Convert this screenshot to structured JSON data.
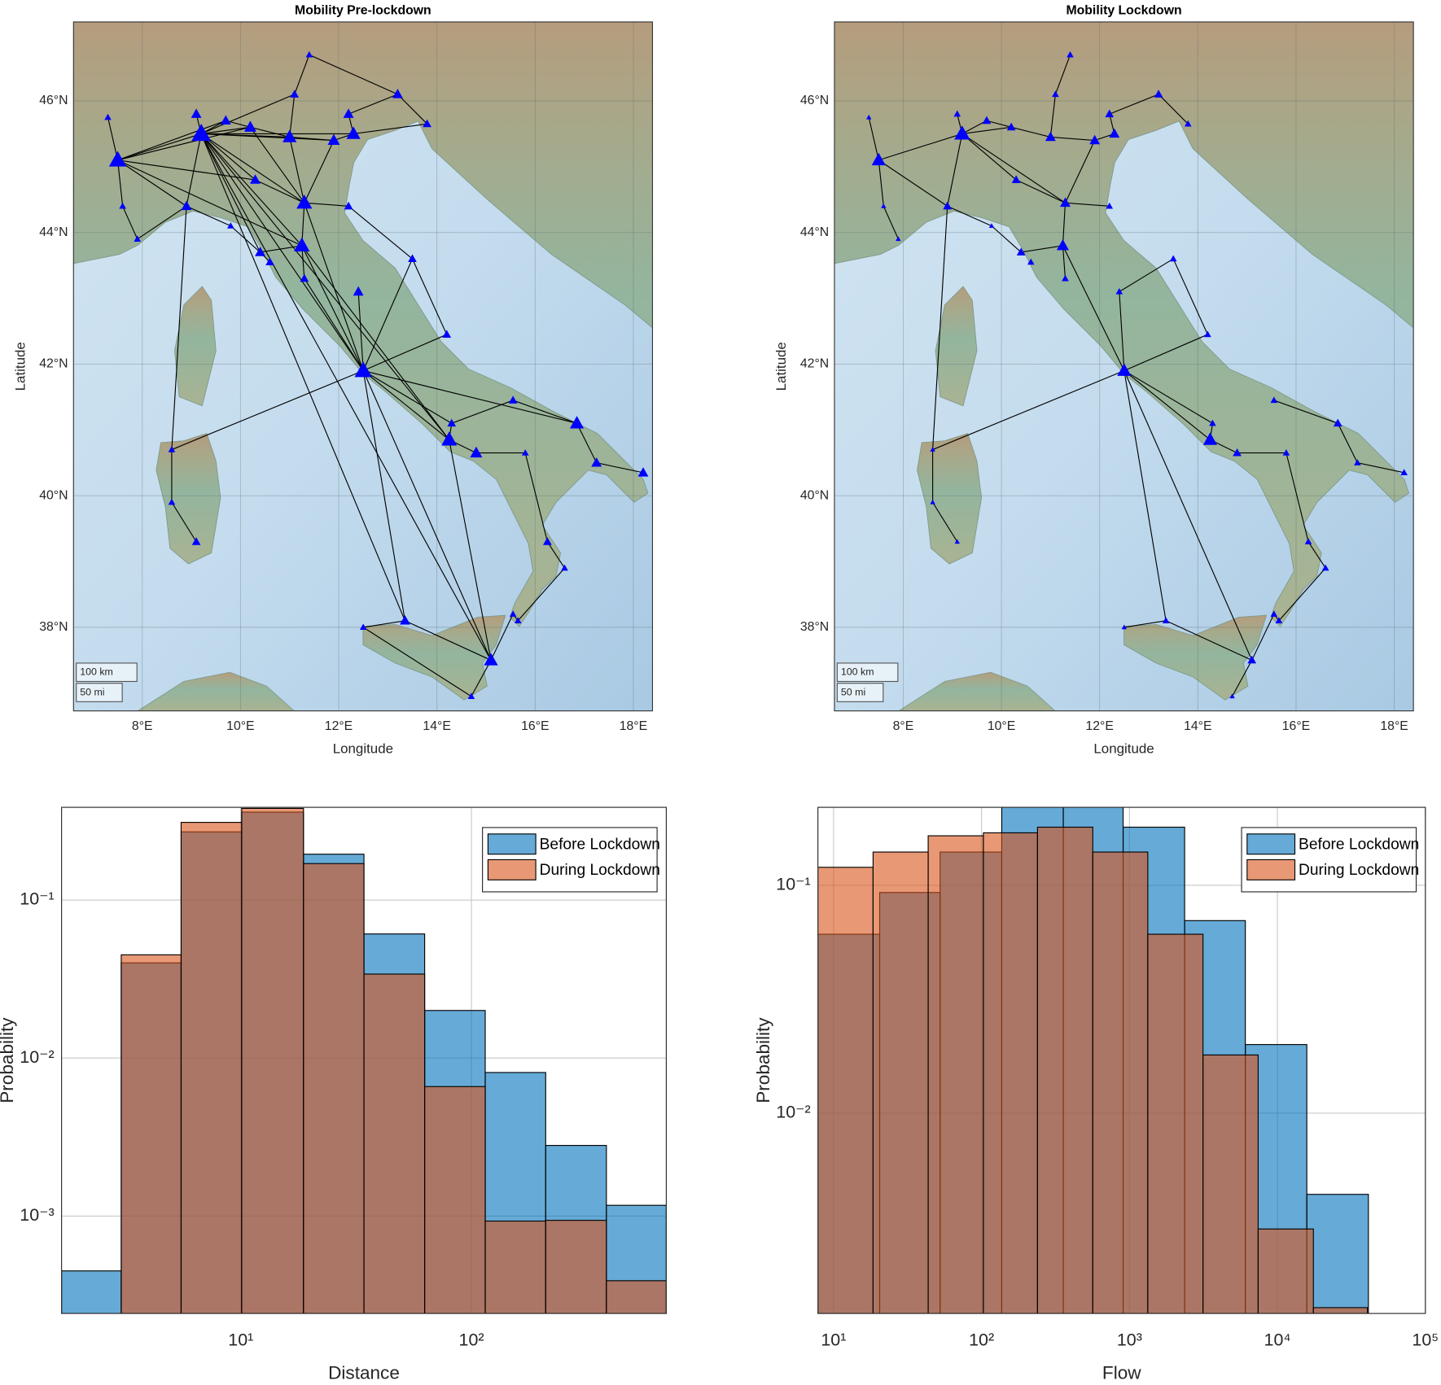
{
  "chart_data": [
    {
      "type": "map",
      "title": "Mobility Pre-lockdown",
      "x_label": "Longitude",
      "y_label": "Latitude",
      "xlim": [
        6.6,
        18.39
      ],
      "ylim": [
        36.73,
        47.2
      ],
      "xticks": [
        {
          "value": 8,
          "label": "8°E"
        },
        {
          "value": 10,
          "label": "10°E"
        },
        {
          "value": 12,
          "label": "12°E"
        },
        {
          "value": 14,
          "label": "14°E"
        },
        {
          "value": 16,
          "label": "16°E"
        },
        {
          "value": 18,
          "label": "18°E"
        }
      ],
      "yticks": [
        {
          "value": 38,
          "label": "38°N"
        },
        {
          "value": 40,
          "label": "40°N"
        },
        {
          "value": 42,
          "label": "42°N"
        },
        {
          "value": 44,
          "label": "44°N"
        },
        {
          "value": 46,
          "label": "46°N"
        }
      ],
      "scale_labels": [
        "100 km",
        "50 mi"
      ],
      "color": "#0000ff",
      "x": [
        7.5,
        9.2,
        9.7,
        10.2,
        11.0,
        11.9,
        12.3,
        12.2,
        13.2,
        13.8,
        11.1,
        11.4,
        8.9,
        10.3,
        11.3,
        12.2,
        11.25,
        10.4,
        10.6,
        11.3,
        12.4,
        13.5,
        14.2,
        12.5,
        14.25,
        14.8,
        14.3,
        15.55,
        16.85,
        17.25,
        18.2,
        15.8,
        16.25,
        16.6,
        15.65,
        13.35,
        15.1,
        15.55,
        12.5,
        14.7,
        8.6,
        9.1,
        8.6,
        7.9,
        7.6,
        7.3,
        9.8,
        9.1
      ],
      "y": [
        45.1,
        45.5,
        45.7,
        45.6,
        45.45,
        45.4,
        45.5,
        45.8,
        46.1,
        45.65,
        46.1,
        46.7,
        44.4,
        44.8,
        44.45,
        44.4,
        43.8,
        43.7,
        43.55,
        43.3,
        43.1,
        43.6,
        42.45,
        41.9,
        40.85,
        40.65,
        41.1,
        41.45,
        41.1,
        40.5,
        40.35,
        40.65,
        39.3,
        38.9,
        38.1,
        38.1,
        37.5,
        38.2,
        38.0,
        36.95,
        40.7,
        39.3,
        39.9,
        43.9,
        44.4,
        45.75,
        44.1,
        45.8
      ],
      "sizes": [
        10,
        11,
        6,
        7,
        8,
        7,
        8,
        6,
        6,
        5,
        5,
        4,
        6,
        6,
        9,
        5,
        9,
        6,
        5,
        5,
        6,
        5,
        5,
        10,
        9,
        7,
        5,
        5,
        8,
        6,
        6,
        4,
        5,
        4,
        4,
        6,
        8,
        4,
        4,
        4,
        4,
        5,
        4,
        4,
        4,
        4,
        4,
        6
      ],
      "links": [
        [
          0,
          1
        ],
        [
          0,
          2
        ],
        [
          0,
          3
        ],
        [
          0,
          12
        ],
        [
          0,
          44
        ],
        [
          0,
          45
        ],
        [
          0,
          13
        ],
        [
          1,
          2
        ],
        [
          1,
          3
        ],
        [
          1,
          4
        ],
        [
          1,
          5
        ],
        [
          1,
          6
        ],
        [
          1,
          12
        ],
        [
          1,
          13
        ],
        [
          1,
          14
        ],
        [
          1,
          16
        ],
        [
          1,
          23
        ],
        [
          1,
          47
        ],
        [
          1,
          10
        ],
        [
          1,
          24
        ],
        [
          2,
          3
        ],
        [
          3,
          4
        ],
        [
          4,
          5
        ],
        [
          4,
          10
        ],
        [
          5,
          6
        ],
        [
          6,
          7
        ],
        [
          7,
          8
        ],
        [
          8,
          9
        ],
        [
          6,
          9
        ],
        [
          10,
          11
        ],
        [
          11,
          8
        ],
        [
          4,
          14
        ],
        [
          5,
          14
        ],
        [
          13,
          14
        ],
        [
          14,
          15
        ],
        [
          14,
          16
        ],
        [
          14,
          23
        ],
        [
          12,
          46
        ],
        [
          46,
          17
        ],
        [
          17,
          18
        ],
        [
          17,
          16
        ],
        [
          16,
          19
        ],
        [
          16,
          23
        ],
        [
          19,
          23
        ],
        [
          20,
          23
        ],
        [
          21,
          23
        ],
        [
          21,
          22
        ],
        [
          22,
          23
        ],
        [
          15,
          21
        ],
        [
          23,
          24
        ],
        [
          23,
          26
        ],
        [
          23,
          28
        ],
        [
          23,
          35
        ],
        [
          23,
          36
        ],
        [
          23,
          40
        ],
        [
          12,
          40
        ],
        [
          24,
          25
        ],
        [
          24,
          26
        ],
        [
          25,
          31
        ],
        [
          26,
          27
        ],
        [
          27,
          28
        ],
        [
          28,
          29
        ],
        [
          29,
          30
        ],
        [
          31,
          32
        ],
        [
          32,
          33
        ],
        [
          33,
          34
        ],
        [
          34,
          37
        ],
        [
          37,
          36
        ],
        [
          36,
          39
        ],
        [
          36,
          35
        ],
        [
          35,
          38
        ],
        [
          38,
          39
        ],
        [
          40,
          42
        ],
        [
          42,
          41
        ],
        [
          43,
          44
        ],
        [
          43,
          12
        ],
        [
          1,
          36
        ],
        [
          1,
          35
        ],
        [
          24,
          36
        ],
        [
          16,
          24
        ],
        [
          3,
          14
        ],
        [
          0,
          16
        ],
        [
          1,
          17
        ]
      ]
    },
    {
      "type": "map",
      "title": "Mobility Lockdown",
      "x_label": "Longitude",
      "y_label": "Latitude",
      "xlim": [
        6.6,
        18.39
      ],
      "ylim": [
        36.73,
        47.2
      ],
      "xticks": [
        {
          "value": 8,
          "label": "8°E"
        },
        {
          "value": 10,
          "label": "10°E"
        },
        {
          "value": 12,
          "label": "12°E"
        },
        {
          "value": 14,
          "label": "14°E"
        },
        {
          "value": 16,
          "label": "16°E"
        },
        {
          "value": 18,
          "label": "18°E"
        }
      ],
      "yticks": [
        {
          "value": 38,
          "label": "38°N"
        },
        {
          "value": 40,
          "label": "40°N"
        },
        {
          "value": 42,
          "label": "42°N"
        },
        {
          "value": 44,
          "label": "44°N"
        },
        {
          "value": 46,
          "label": "46°N"
        }
      ],
      "scale_labels": [
        "100 km",
        "50 mi"
      ],
      "color": "#0000ff",
      "x": [
        7.5,
        9.2,
        9.7,
        10.2,
        11.0,
        11.9,
        12.3,
        12.2,
        13.2,
        13.8,
        11.1,
        11.4,
        8.9,
        10.3,
        11.3,
        12.2,
        11.25,
        10.4,
        10.6,
        11.3,
        12.4,
        13.5,
        14.2,
        12.5,
        14.25,
        14.8,
        14.3,
        15.55,
        16.85,
        17.25,
        18.2,
        15.8,
        16.25,
        16.6,
        15.65,
        13.35,
        15.1,
        15.55,
        12.5,
        14.7,
        8.6,
        9.1,
        8.6,
        7.9,
        7.6,
        7.3,
        9.8,
        9.1
      ],
      "y": [
        45.1,
        45.5,
        45.7,
        45.6,
        45.45,
        45.4,
        45.5,
        45.8,
        46.1,
        45.65,
        46.1,
        46.7,
        44.4,
        44.8,
        44.45,
        44.4,
        43.8,
        43.7,
        43.55,
        43.3,
        43.1,
        43.6,
        42.45,
        41.9,
        40.85,
        40.65,
        41.1,
        41.45,
        41.1,
        40.5,
        40.35,
        40.65,
        39.3,
        38.9,
        38.1,
        38.1,
        37.5,
        38.2,
        38.0,
        36.95,
        40.7,
        39.3,
        39.9,
        43.9,
        44.4,
        45.75,
        44.1,
        45.8
      ],
      "sizes": [
        8,
        9,
        5,
        5,
        6,
        6,
        6,
        5,
        5,
        4,
        4,
        4,
        5,
        5,
        6,
        4,
        7,
        5,
        4,
        4,
        4,
        4,
        4,
        8,
        8,
        5,
        4,
        4,
        5,
        4,
        4,
        4,
        4,
        4,
        4,
        4,
        5,
        4,
        3,
        3,
        3,
        3,
        3,
        3,
        3,
        3,
        3,
        4
      ],
      "links": [
        [
          0,
          1
        ],
        [
          0,
          44
        ],
        [
          0,
          45
        ],
        [
          0,
          12
        ],
        [
          1,
          2
        ],
        [
          1,
          3
        ],
        [
          1,
          47
        ],
        [
          1,
          12
        ],
        [
          1,
          13
        ],
        [
          1,
          14
        ],
        [
          2,
          3
        ],
        [
          3,
          4
        ],
        [
          4,
          5
        ],
        [
          4,
          10
        ],
        [
          5,
          6
        ],
        [
          6,
          7
        ],
        [
          7,
          8
        ],
        [
          8,
          9
        ],
        [
          10,
          11
        ],
        [
          5,
          14
        ],
        [
          13,
          14
        ],
        [
          14,
          15
        ],
        [
          14,
          16
        ],
        [
          12,
          46
        ],
        [
          46,
          17
        ],
        [
          17,
          16
        ],
        [
          16,
          19
        ],
        [
          16,
          23
        ],
        [
          20,
          23
        ],
        [
          21,
          20
        ],
        [
          21,
          22
        ],
        [
          22,
          23
        ],
        [
          23,
          24
        ],
        [
          23,
          26
        ],
        [
          23,
          40
        ],
        [
          12,
          40
        ],
        [
          24,
          25
        ],
        [
          24,
          26
        ],
        [
          25,
          31
        ],
        [
          27,
          28
        ],
        [
          28,
          29
        ],
        [
          29,
          30
        ],
        [
          31,
          32
        ],
        [
          32,
          33
        ],
        [
          33,
          34
        ],
        [
          34,
          37
        ],
        [
          37,
          36
        ],
        [
          36,
          39
        ],
        [
          36,
          35
        ],
        [
          35,
          38
        ],
        [
          40,
          42
        ],
        [
          42,
          41
        ],
        [
          43,
          44
        ],
        [
          23,
          35
        ],
        [
          23,
          36
        ]
      ]
    },
    {
      "type": "histogram",
      "x_label": "Distance",
      "y_label": "Probability",
      "xscale": "log",
      "yscale": "log",
      "xlim": [
        1.67,
        700
      ],
      "ylim": [
        0.000242,
        0.386
      ],
      "xticks": [
        {
          "value": 10,
          "label": "10¹"
        },
        {
          "value": 100,
          "label": "10²"
        }
      ],
      "yticks": [
        {
          "value": 0.001,
          "label": "10⁻³"
        },
        {
          "value": 0.01,
          "label": "10⁻²"
        },
        {
          "value": 0.1,
          "label": "10⁻¹"
        }
      ],
      "grid": true,
      "legend": "upper right",
      "alpha": 0.6,
      "series": [
        {
          "name": "Before Lockdown",
          "color": "#0072bd",
          "bins": [
            1.67,
            3.03,
            5.51,
            10.09,
            18.7,
            34.2,
            62.7,
            114.8,
            210,
            385,
            700
          ],
          "values": [
            0.00045,
            0.04,
            0.27,
            0.36,
            0.195,
            0.061,
            0.02,
            0.0081,
            0.0028,
            0.00117
          ]
        },
        {
          "name": "During Lockdown",
          "color": "#d95319",
          "bins": [
            1.67,
            3.03,
            5.51,
            10.09,
            18.7,
            34.2,
            62.7,
            114.8,
            210,
            385,
            700
          ],
          "values": [
            0,
            0.045,
            0.31,
            0.38,
            0.17,
            0.034,
            0.0066,
            0.00093,
            0.00094,
            0.00039
          ]
        }
      ]
    },
    {
      "type": "histogram",
      "x_label": "Flow",
      "y_label": "Probability",
      "xscale": "log",
      "yscale": "log",
      "xlim": [
        7.84,
        100000
      ],
      "ylim": [
        0.00132,
        0.22
      ],
      "xticks": [
        {
          "value": 10,
          "label": "10¹"
        },
        {
          "value": 100,
          "label": "10²"
        },
        {
          "value": 1000,
          "label": "10³"
        },
        {
          "value": 10000,
          "label": "10⁴"
        },
        {
          "value": 100000,
          "label": "10⁵"
        }
      ],
      "yticks": [
        {
          "value": 0.01,
          "label": "10⁻²"
        },
        {
          "value": 0.1,
          "label": "10⁻¹"
        }
      ],
      "grid": true,
      "legend": "upper right",
      "alpha": 0.6,
      "series": [
        {
          "name": "Before Lockdown",
          "color": "#0072bd",
          "bins": [
            7.8,
            20.5,
            52.5,
            137,
            357,
            906,
            2360,
            6070,
            15800,
            41200
          ],
          "values": [
            0.061,
            0.093,
            0.14,
            0.25,
            0.25,
            0.18,
            0.07,
            0.02,
            0.0044
          ]
        },
        {
          "name": "During Lockdown",
          "color": "#d95319",
          "bins": [
            7.83,
            18.5,
            43.6,
            103,
            239,
            565,
            1330,
            3140,
            7410,
            17500,
            40600
          ],
          "values": [
            0.12,
            0.14,
            0.165,
            0.17,
            0.18,
            0.14,
            0.061,
            0.018,
            0.0031,
            0.0014
          ]
        }
      ]
    }
  ]
}
